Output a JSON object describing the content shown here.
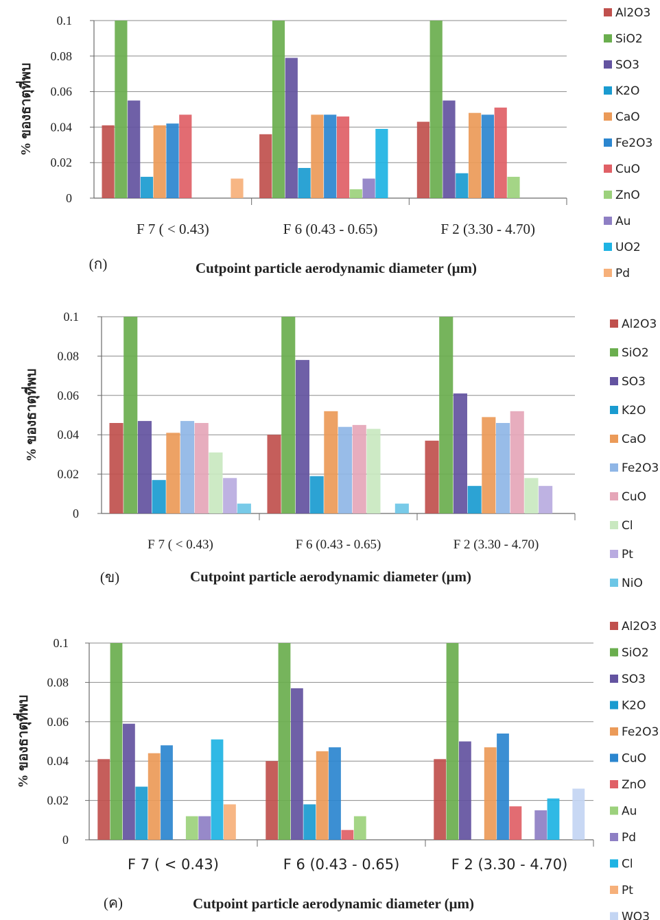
{
  "chart_data": [
    {
      "type": "bar",
      "panel_label": "(ก)",
      "xlabel": "Cutpoint particle aerodynamic diameter (μm)",
      "ylabel": "% ของธาตุที่พบ",
      "ylim": [
        0,
        0.1
      ],
      "yticks": [
        "0",
        "0.02",
        "0.04",
        "0.06",
        "0.08",
        "0.1"
      ],
      "grid": true,
      "legend_position": "right",
      "categories": [
        "F 7 ( < 0.43)",
        "F 6 (0.43 - 0.65)",
        "F 2 (3.30 - 4.70)"
      ],
      "series": [
        {
          "name": "Al2O3",
          "color": "#c0504d",
          "values": [
            0.041,
            0.036,
            0.043
          ]
        },
        {
          "name": "SiO2",
          "color": "#6aae4e",
          "values": [
            0.1,
            0.1,
            0.1
          ]
        },
        {
          "name": "SO3",
          "color": "#6353a0",
          "values": [
            0.055,
            0.079,
            0.055
          ]
        },
        {
          "name": "K2O",
          "color": "#1a9bd0",
          "values": [
            0.012,
            0.017,
            0.014
          ]
        },
        {
          "name": "CaO",
          "color": "#eb9a58",
          "values": [
            0.041,
            0.047,
            0.048
          ]
        },
        {
          "name": "Fe2O3",
          "color": "#2b86cf",
          "values": [
            0.042,
            0.047,
            0.047
          ]
        },
        {
          "name": "CuO",
          "color": "#e06066",
          "values": [
            0.047,
            0.046,
            0.051
          ]
        },
        {
          "name": "ZnO",
          "color": "#9cd17c",
          "values": [
            0,
            0.005,
            0.012
          ]
        },
        {
          "name": "Au",
          "color": "#8e7fc4",
          "values": [
            0,
            0.011,
            0
          ]
        },
        {
          "name": "UO2",
          "color": "#1eb3e3",
          "values": [
            0,
            0.039,
            0
          ]
        },
        {
          "name": "Pd",
          "color": "#f6b07a",
          "values": [
            0.011,
            0,
            0
          ]
        }
      ]
    },
    {
      "type": "bar",
      "panel_label": "(ข)",
      "xlabel": "Cutpoint particle aerodynamic diameter (μm)",
      "ylabel": "% ของธาตุที่พบ",
      "ylim": [
        0,
        0.1
      ],
      "yticks": [
        "0",
        "0.02",
        "0.04",
        "0.06",
        "0.08",
        "0.1"
      ],
      "grid": true,
      "legend_position": "right",
      "categories": [
        "F 7 ( < 0.43)",
        "F 6 (0.43 - 0.65)",
        "F 2 (3.30 - 4.70)"
      ],
      "series": [
        {
          "name": "Al2O3",
          "color": "#c0504d",
          "values": [
            0.046,
            0.04,
            0.037
          ]
        },
        {
          "name": "SiO2",
          "color": "#6aae4e",
          "values": [
            0.1,
            0.1,
            0.1
          ]
        },
        {
          "name": "SO3",
          "color": "#6353a0",
          "values": [
            0.047,
            0.078,
            0.061
          ]
        },
        {
          "name": "K2O",
          "color": "#1a9bd0",
          "values": [
            0.017,
            0.019,
            0.014
          ]
        },
        {
          "name": "CaO",
          "color": "#eb9a58",
          "values": [
            0.041,
            0.052,
            0.049
          ]
        },
        {
          "name": "Fe2O3",
          "color": "#8fb6e6",
          "values": [
            0.047,
            0.044,
            0.046
          ]
        },
        {
          "name": "CuO",
          "color": "#e5a6b8",
          "values": [
            0.046,
            0.045,
            0.052
          ]
        },
        {
          "name": "Cl",
          "color": "#c9e8c0",
          "values": [
            0.031,
            0.043,
            0.018
          ]
        },
        {
          "name": "Pt",
          "color": "#b9abe0",
          "values": [
            0.018,
            0,
            0.014
          ]
        },
        {
          "name": "NiO",
          "color": "#6cc6e6",
          "values": [
            0.005,
            0.005,
            0
          ]
        }
      ]
    },
    {
      "type": "bar",
      "panel_label": "(ค)",
      "xlabel": "Cutpoint particle aerodynamic diameter (μm)",
      "ylabel": "% ของธาตุที่พบ",
      "ylim": [
        0,
        0.1
      ],
      "yticks": [
        "0",
        "0.02",
        "0.04",
        "0.06",
        "0.08",
        "0.1"
      ],
      "grid": true,
      "legend_position": "right",
      "categories": [
        "F 7 ( < 0.43)",
        "F 6 (0.43 - 0.65)",
        "F 2 (3.30 - 4.70)"
      ],
      "series": [
        {
          "name": "Al2O3",
          "color": "#c0504d",
          "values": [
            0.041,
            0.04,
            0.041
          ]
        },
        {
          "name": "SiO2",
          "color": "#6aae4e",
          "values": [
            0.1,
            0.1,
            0.1
          ]
        },
        {
          "name": "SO3",
          "color": "#6353a0",
          "values": [
            0.059,
            0.077,
            0.05
          ]
        },
        {
          "name": "K2O",
          "color": "#1a9bd0",
          "values": [
            0.027,
            0.018,
            0
          ]
        },
        {
          "name": "Fe2O3",
          "color": "#eb9a58",
          "values": [
            0.044,
            0.045,
            0.047
          ]
        },
        {
          "name": "CuO",
          "color": "#2b86cf",
          "values": [
            0.048,
            0.047,
            0.054
          ]
        },
        {
          "name": "ZnO",
          "color": "#e06066",
          "values": [
            0,
            0.005,
            0.017
          ]
        },
        {
          "name": "Au",
          "color": "#9cd17c",
          "values": [
            0.012,
            0.012,
            0
          ]
        },
        {
          "name": "Pd",
          "color": "#8e7fc4",
          "values": [
            0.012,
            0,
            0.015
          ]
        },
        {
          "name": "Cl",
          "color": "#1eb3e3",
          "values": [
            0.051,
            0,
            0.021
          ]
        },
        {
          "name": "Pt",
          "color": "#f6b07a",
          "values": [
            0.018,
            0,
            0
          ]
        },
        {
          "name": "WO3",
          "color": "#c3d5f3",
          "values": [
            0,
            0,
            0.026
          ]
        }
      ]
    }
  ]
}
